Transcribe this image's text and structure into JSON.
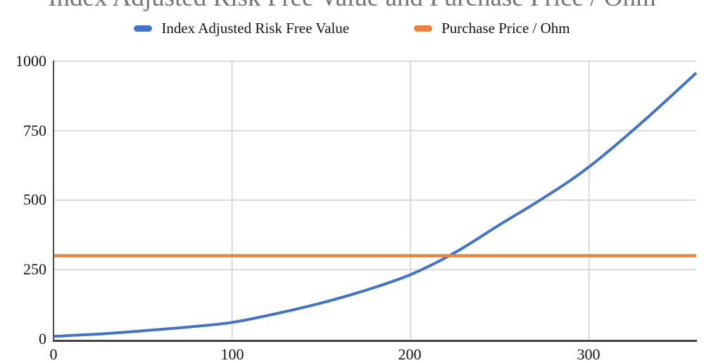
{
  "chart": {
    "title": "Index Adjusted Risk Free Value and Purchase Price / Ohm"
  },
  "legend": {
    "items": [
      {
        "label": "Index Adjusted Risk Free Value",
        "color": "#4473C5"
      },
      {
        "label": "Purchase Price / Ohm",
        "color": "#E8823C"
      }
    ]
  },
  "axes": {
    "y_labels": [
      "1000",
      "750",
      "500",
      "250",
      "0"
    ],
    "x_labels": [
      "0",
      "100",
      "200",
      "300"
    ]
  },
  "chart_data": {
    "type": "line",
    "title": "Index Adjusted Risk Free Value and Purchase Price / Ohm",
    "xlabel": "",
    "ylabel": "",
    "xlim": [
      0,
      360
    ],
    "ylim": [
      0,
      1000
    ],
    "x_ticks": [
      0,
      100,
      200,
      300
    ],
    "y_ticks": [
      0,
      250,
      500,
      750,
      1000
    ],
    "grid": true,
    "legend_position": "top",
    "gridline_color": "#D9D9D9",
    "series": [
      {
        "name": "Index Adjusted Risk Free Value",
        "color": "#4473C5",
        "points": [
          [
            0,
            10
          ],
          [
            25,
            18
          ],
          [
            50,
            30
          ],
          [
            75,
            43
          ],
          [
            100,
            60
          ],
          [
            125,
            92
          ],
          [
            150,
            130
          ],
          [
            175,
            176
          ],
          [
            200,
            232
          ],
          [
            225,
            312
          ],
          [
            250,
            412
          ],
          [
            275,
            510
          ],
          [
            300,
            620
          ],
          [
            330,
            782
          ],
          [
            360,
            958
          ]
        ]
      },
      {
        "name": "Purchase Price / Ohm",
        "color": "#E8823C",
        "points": [
          [
            0,
            300
          ],
          [
            360,
            300
          ]
        ]
      }
    ]
  }
}
